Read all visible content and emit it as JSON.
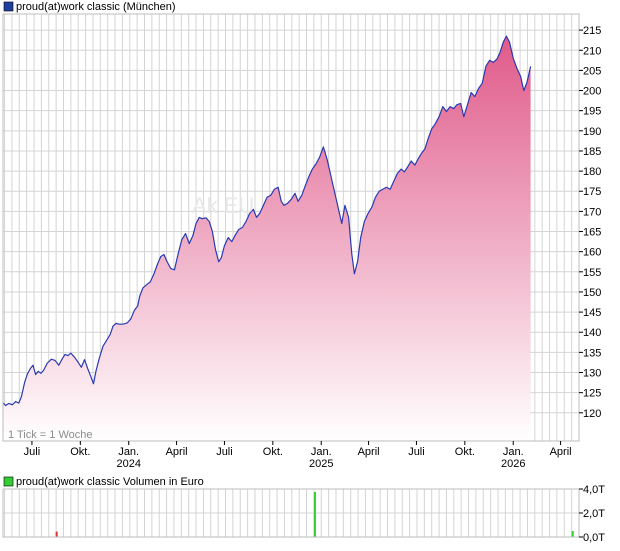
{
  "chart_data": [
    {
      "type": "area",
      "title": "proud(at)work classic (München)",
      "legend_label": "proud(at)work classic (München)",
      "legend_placement": "top-left",
      "tick_note": "1 Tick = 1 Woche",
      "watermark": "Ak  EU",
      "grid": true,
      "ylim": [
        113,
        219
      ],
      "y_ticks": [
        120,
        125,
        130,
        135,
        140,
        145,
        150,
        155,
        160,
        165,
        170,
        175,
        180,
        185,
        190,
        195,
        200,
        205,
        210,
        215
      ],
      "y_tick_labels": [
        "120",
        "125",
        "130",
        "135",
        "140",
        "145",
        "150",
        "155",
        "160",
        "165",
        "170",
        "175",
        "180",
        "185",
        "190",
        "195",
        "200",
        "205",
        "210",
        "215"
      ],
      "xlim": [
        "2023-05-07",
        "2026-05-06"
      ],
      "x_ticks": [
        {
          "date": "2023-07-01",
          "label": "Juli",
          "year": ""
        },
        {
          "date": "2023-10-01",
          "label": "Okt.",
          "year": ""
        },
        {
          "date": "2024-01-01",
          "label": "Jan.",
          "year": "2024"
        },
        {
          "date": "2024-04-01",
          "label": "April",
          "year": ""
        },
        {
          "date": "2024-07-01",
          "label": "Juli",
          "year": ""
        },
        {
          "date": "2024-10-01",
          "label": "Okt.",
          "year": ""
        },
        {
          "date": "2025-01-01",
          "label": "Jan.",
          "year": "2025"
        },
        {
          "date": "2025-04-01",
          "label": "April",
          "year": ""
        },
        {
          "date": "2025-07-01",
          "label": "Juli",
          "year": ""
        },
        {
          "date": "2025-10-01",
          "label": "Okt.",
          "year": ""
        },
        {
          "date": "2026-01-01",
          "label": "Jan.",
          "year": "2026"
        },
        {
          "date": "2026-04-01",
          "label": "April",
          "year": ""
        }
      ],
      "colors": {
        "line": "#2a3ab0",
        "fill_top": "#e05a8a",
        "fill_bottom": "#ffffff",
        "grid": "#d4d4d4",
        "legend_swatch": "#1f3fa0"
      },
      "series": [
        {
          "name": "proud(at)work classic (München)",
          "points": [
            [
              "2023-05-07",
              122.5
            ],
            [
              "2023-05-12",
              121.8
            ],
            [
              "2023-05-18",
              122.3
            ],
            [
              "2023-05-25",
              122.0
            ],
            [
              "2023-05-31",
              122.8
            ],
            [
              "2023-06-06",
              122.4
            ],
            [
              "2023-06-11",
              124.0
            ],
            [
              "2023-06-17",
              127.5
            ],
            [
              "2023-06-22",
              129.5
            ],
            [
              "2023-06-28",
              131.0
            ],
            [
              "2023-07-03",
              131.8
            ],
            [
              "2023-07-08",
              129.5
            ],
            [
              "2023-07-13",
              130.3
            ],
            [
              "2023-07-18",
              129.8
            ],
            [
              "2023-07-23",
              130.5
            ],
            [
              "2023-07-30",
              132.3
            ],
            [
              "2023-08-07",
              133.3
            ],
            [
              "2023-08-14",
              133.0
            ],
            [
              "2023-08-21",
              131.8
            ],
            [
              "2023-08-28",
              133.5
            ],
            [
              "2023-09-02",
              134.5
            ],
            [
              "2023-09-07",
              134.2
            ],
            [
              "2023-09-13",
              134.8
            ],
            [
              "2023-09-20",
              133.8
            ],
            [
              "2023-09-27",
              132.5
            ],
            [
              "2023-10-03",
              131.3
            ],
            [
              "2023-10-09",
              133.2
            ],
            [
              "2023-10-15",
              131.0
            ],
            [
              "2023-10-21",
              129.0
            ],
            [
              "2023-10-26",
              127.2
            ],
            [
              "2023-10-31",
              130.5
            ],
            [
              "2023-11-06",
              133.5
            ],
            [
              "2023-11-13",
              136.5
            ],
            [
              "2023-11-20",
              138.0
            ],
            [
              "2023-11-27",
              139.5
            ],
            [
              "2023-12-02",
              141.5
            ],
            [
              "2023-12-08",
              142.2
            ],
            [
              "2023-12-14",
              142.0
            ],
            [
              "2023-12-21",
              142.0
            ],
            [
              "2023-12-29",
              142.3
            ],
            [
              "2024-01-05",
              143.3
            ],
            [
              "2024-01-12",
              145.5
            ],
            [
              "2024-01-18",
              146.5
            ],
            [
              "2024-01-22",
              149.0
            ],
            [
              "2024-01-28",
              151.0
            ],
            [
              "2024-02-04",
              151.8
            ],
            [
              "2024-02-11",
              152.5
            ],
            [
              "2024-02-18",
              154.5
            ],
            [
              "2024-02-25",
              157.0
            ],
            [
              "2024-03-02",
              158.8
            ],
            [
              "2024-03-08",
              159.3
            ],
            [
              "2024-03-14",
              157.5
            ],
            [
              "2024-03-21",
              155.8
            ],
            [
              "2024-03-28",
              155.5
            ],
            [
              "2024-04-04",
              159.5
            ],
            [
              "2024-04-11",
              163.0
            ],
            [
              "2024-04-18",
              164.5
            ],
            [
              "2024-04-25",
              162.0
            ],
            [
              "2024-05-02",
              164.0
            ],
            [
              "2024-05-08",
              167.0
            ],
            [
              "2024-05-14",
              168.5
            ],
            [
              "2024-05-20",
              168.2
            ],
            [
              "2024-05-27",
              168.4
            ],
            [
              "2024-06-02",
              167.5
            ],
            [
              "2024-06-08",
              165.0
            ],
            [
              "2024-06-14",
              160.5
            ],
            [
              "2024-06-20",
              157.5
            ],
            [
              "2024-06-25",
              158.5
            ],
            [
              "2024-07-01",
              161.5
            ],
            [
              "2024-07-08",
              163.5
            ],
            [
              "2024-07-15",
              162.5
            ],
            [
              "2024-07-21",
              164.0
            ],
            [
              "2024-07-28",
              165.5
            ],
            [
              "2024-08-04",
              166.0
            ],
            [
              "2024-08-11",
              167.5
            ],
            [
              "2024-08-18",
              169.5
            ],
            [
              "2024-08-25",
              170.5
            ],
            [
              "2024-08-31",
              168.5
            ],
            [
              "2024-09-06",
              169.5
            ],
            [
              "2024-09-13",
              171.5
            ],
            [
              "2024-09-20",
              173.5
            ],
            [
              "2024-09-27",
              174.0
            ],
            [
              "2024-10-04",
              175.5
            ],
            [
              "2024-10-11",
              176.0
            ],
            [
              "2024-10-17",
              172.5
            ],
            [
              "2024-10-22",
              171.5
            ],
            [
              "2024-10-29",
              172.0
            ],
            [
              "2024-11-05",
              173.0
            ],
            [
              "2024-11-12",
              174.5
            ],
            [
              "2024-11-18",
              172.5
            ],
            [
              "2024-11-25",
              174.0
            ],
            [
              "2024-12-02",
              176.5
            ],
            [
              "2024-12-09",
              178.8
            ],
            [
              "2024-12-15",
              180.5
            ],
            [
              "2024-12-22",
              181.8
            ],
            [
              "2024-12-29",
              183.5
            ],
            [
              "2025-01-05",
              186.0
            ],
            [
              "2025-01-12",
              183.0
            ],
            [
              "2025-01-19",
              179.0
            ],
            [
              "2025-01-26",
              175.0
            ],
            [
              "2025-02-02",
              171.0
            ],
            [
              "2025-02-09",
              167.0
            ],
            [
              "2025-02-15",
              171.5
            ],
            [
              "2025-02-22",
              168.5
            ],
            [
              "2025-02-28",
              159.5
            ],
            [
              "2025-03-05",
              154.5
            ],
            [
              "2025-03-11",
              157.5
            ],
            [
              "2025-03-17",
              163.5
            ],
            [
              "2025-03-24",
              167.5
            ],
            [
              "2025-03-31",
              169.5
            ],
            [
              "2025-04-07",
              171.0
            ],
            [
              "2025-04-14",
              173.5
            ],
            [
              "2025-04-21",
              175.0
            ],
            [
              "2025-04-28",
              175.5
            ],
            [
              "2025-05-05",
              176.0
            ],
            [
              "2025-05-12",
              175.5
            ],
            [
              "2025-05-19",
              177.5
            ],
            [
              "2025-05-26",
              179.5
            ],
            [
              "2025-06-02",
              180.5
            ],
            [
              "2025-06-08",
              179.8
            ],
            [
              "2025-06-14",
              181.0
            ],
            [
              "2025-06-21",
              182.5
            ],
            [
              "2025-06-28",
              181.5
            ],
            [
              "2025-07-04",
              183.0
            ],
            [
              "2025-07-11",
              184.5
            ],
            [
              "2025-07-17",
              185.5
            ],
            [
              "2025-07-23",
              188.0
            ],
            [
              "2025-07-30",
              190.5
            ],
            [
              "2025-08-06",
              191.8
            ],
            [
              "2025-08-13",
              193.5
            ],
            [
              "2025-08-20",
              196.0
            ],
            [
              "2025-08-27",
              194.8
            ],
            [
              "2025-09-03",
              196.0
            ],
            [
              "2025-09-10",
              195.5
            ],
            [
              "2025-09-16",
              196.5
            ],
            [
              "2025-09-23",
              196.8
            ],
            [
              "2025-09-29",
              193.5
            ],
            [
              "2025-10-06",
              196.5
            ],
            [
              "2025-10-13",
              199.5
            ],
            [
              "2025-10-20",
              198.5
            ],
            [
              "2025-10-27",
              200.5
            ],
            [
              "2025-11-03",
              201.8
            ],
            [
              "2025-11-10",
              206.0
            ],
            [
              "2025-11-17",
              207.5
            ],
            [
              "2025-11-24",
              207.0
            ],
            [
              "2025-12-01",
              207.8
            ],
            [
              "2025-12-07",
              209.5
            ],
            [
              "2025-12-13",
              212.0
            ],
            [
              "2025-12-19",
              213.5
            ],
            [
              "2025-12-25",
              212.0
            ],
            [
              "2026-01-01",
              208.0
            ],
            [
              "2026-01-08",
              205.5
            ],
            [
              "2026-01-15",
              203.5
            ],
            [
              "2026-01-21",
              200.0
            ],
            [
              "2026-01-27",
              202.0
            ],
            [
              "2026-02-03",
              206.0
            ]
          ]
        }
      ]
    },
    {
      "type": "bar",
      "title": "proud(at)work classic Volumen in Euro",
      "legend_label": "proud(at)work classic Volumen in Euro",
      "legend_placement": "top-left",
      "grid": true,
      "ylim": [
        0,
        4.0
      ],
      "y_ticks": [
        0,
        2,
        4
      ],
      "y_tick_labels": [
        "0,0T",
        "2,0T",
        "4,0T"
      ],
      "colors": {
        "bar": "#33cc33",
        "bar_highlight": "#dd3333",
        "legend_swatch": "#33cc33"
      },
      "series": [
        {
          "name": "proud(at)work classic Volumen in Euro",
          "points": [
            {
              "date": "2023-08-17",
              "value": 0.45,
              "color": "#dd3333"
            },
            {
              "date": "2024-12-20",
              "value": 3.75,
              "color": "#33cc33"
            },
            {
              "date": "2026-04-24",
              "value": 0.5,
              "color": "#33cc33"
            }
          ]
        }
      ]
    }
  ]
}
